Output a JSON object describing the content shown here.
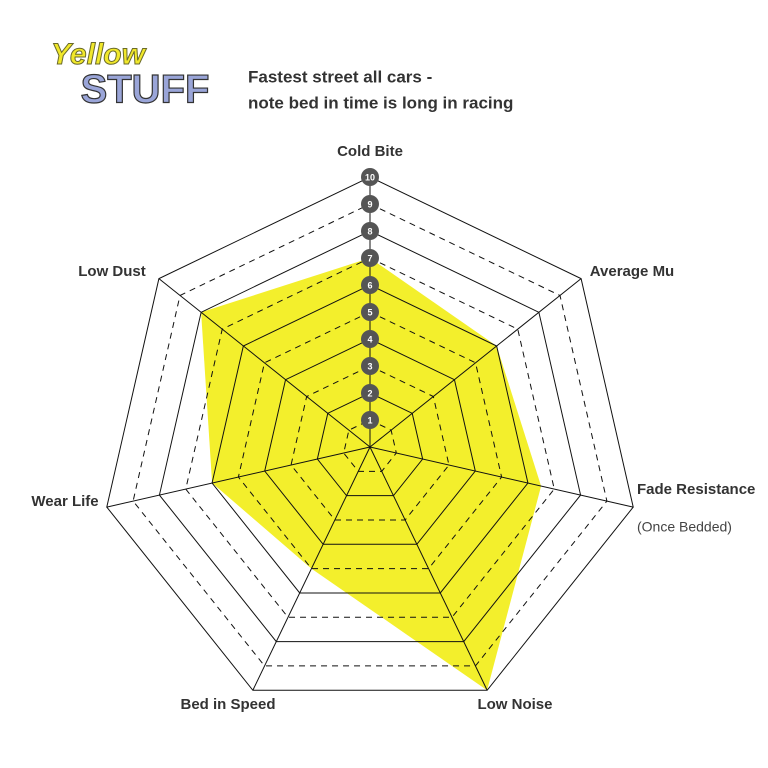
{
  "logo": {
    "line1": "Yellow",
    "line2": "STUFF"
  },
  "chart_data": {
    "type": "radar",
    "title": "Fastest street all cars -",
    "subtitle": "note bed in time is long in racing",
    "categories": [
      "Cold Bite",
      "Average Mu",
      "Fade Resistance",
      "Low Noise",
      "Bed in Speed",
      "Wear Life",
      "Low Dust"
    ],
    "annotation": "(Once Bedded)",
    "values": [
      7,
      6,
      6.5,
      10,
      5,
      6,
      8
    ],
    "color": "#f3ef2c",
    "rlim": [
      0,
      10
    ],
    "rticks": [
      1,
      2,
      3,
      4,
      5,
      6,
      7,
      8,
      9,
      10
    ]
  }
}
